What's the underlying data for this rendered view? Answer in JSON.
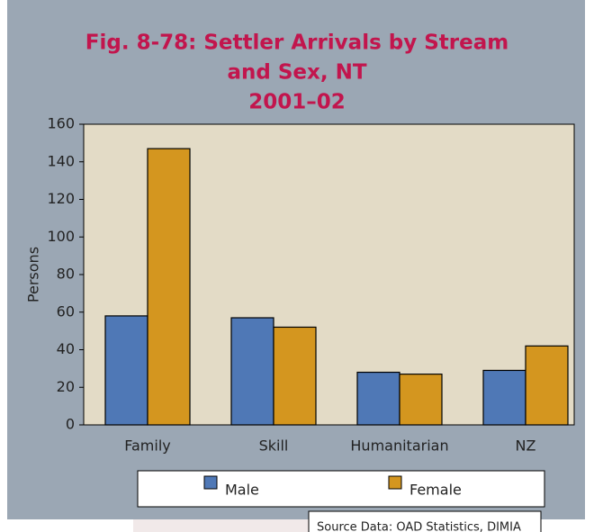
{
  "chart_data": {
    "type": "bar",
    "title": [
      "Fig. 8-78: Settler Arrivals by Stream",
      "and Sex, NT",
      "2001–02"
    ],
    "ylabel": "Persons",
    "categories": [
      "Family",
      "Skill",
      "Humanitarian",
      "NZ"
    ],
    "series": [
      {
        "name": "Male",
        "color": "#4f78b6",
        "values": [
          58,
          57,
          28,
          29
        ]
      },
      {
        "name": "Female",
        "color": "#d4961f",
        "values": [
          147,
          52,
          27,
          42
        ]
      }
    ],
    "ylim": [
      0,
      160
    ],
    "yticks": [
      0,
      20,
      40,
      60,
      80,
      100,
      120,
      140,
      160
    ],
    "source": "Source Data: OAD Statistics, DIMIA"
  }
}
